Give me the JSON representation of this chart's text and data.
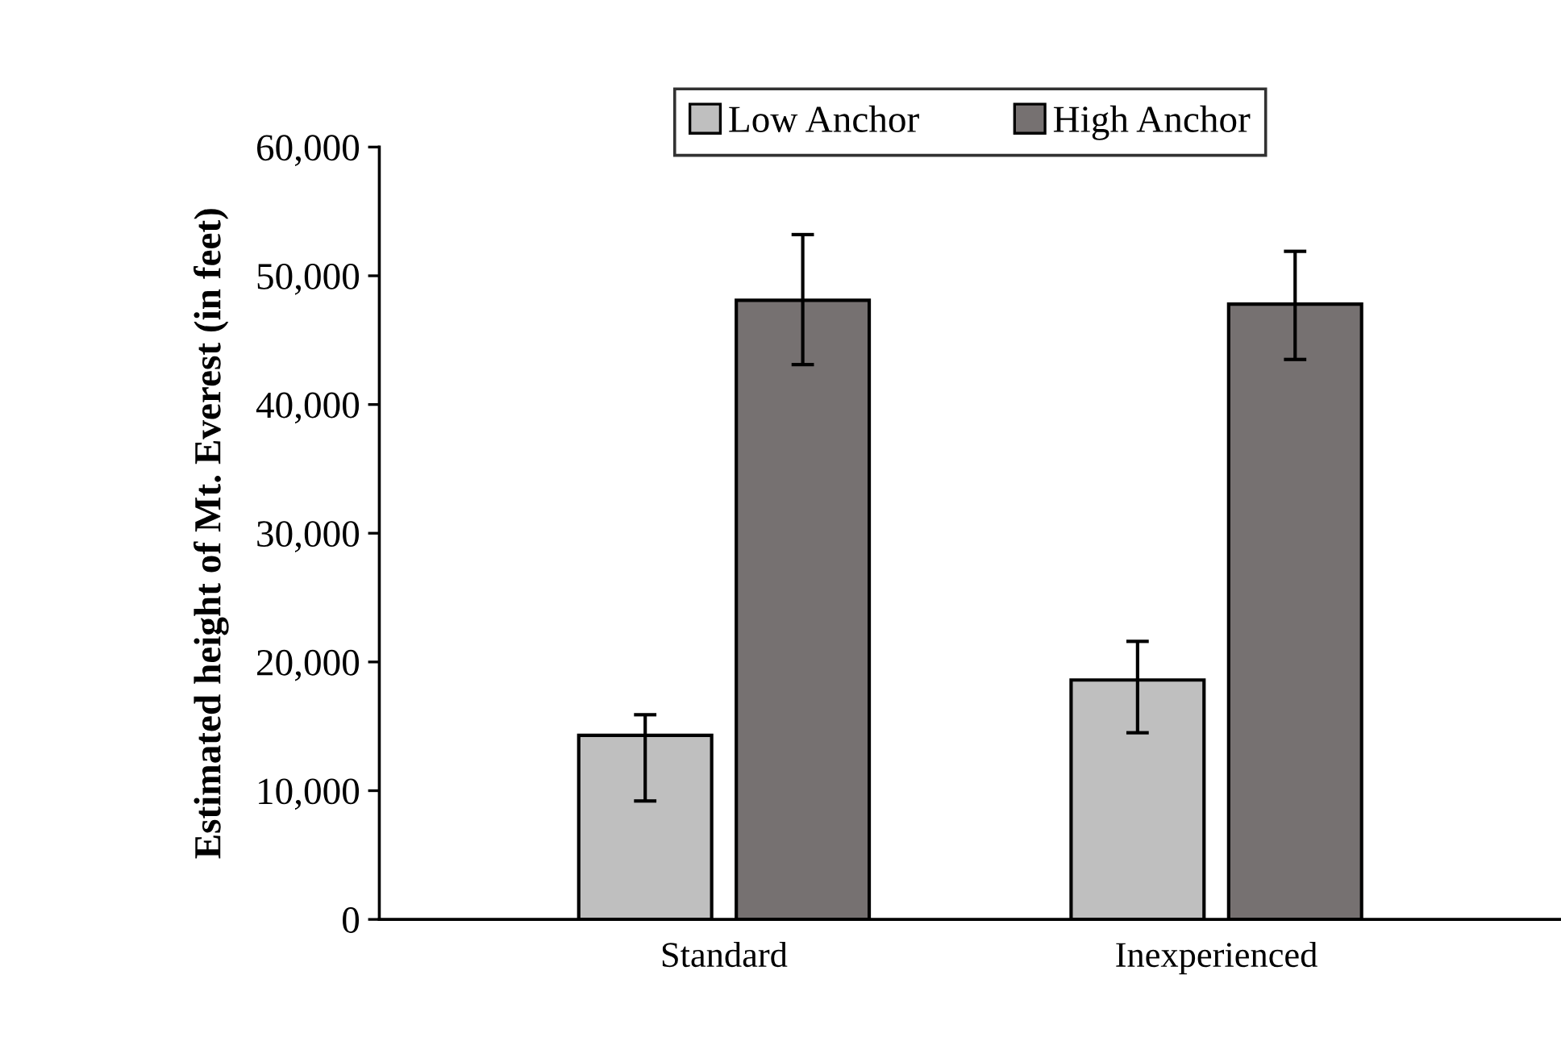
{
  "chart_data": {
    "type": "bar",
    "ylabel": "Estimated height of Mt. Everest (in feet)",
    "categories": [
      "Standard",
      "Inexperienced"
    ],
    "series": [
      {
        "name": "Low Anchor",
        "color": "#bfbfbf",
        "values": [
          14300,
          18600
        ],
        "errors": [
          [
            9200,
            15900
          ],
          [
            14500,
            21600
          ]
        ]
      },
      {
        "name": "High Anchor",
        "color": "#767171",
        "values": [
          48100,
          47800
        ],
        "errors": [
          [
            43100,
            53200
          ],
          [
            43500,
            51900
          ]
        ]
      }
    ],
    "ylim": [
      0,
      60000
    ],
    "yticks": [
      0,
      {
        "value": 10000,
        "label": "10,000"
      },
      {
        "value": 20000,
        "label": "20,000"
      },
      {
        "value": 30000,
        "label": "30,000"
      },
      {
        "value": 40000,
        "label": "40,000"
      },
      {
        "value": 50000,
        "label": "50,000"
      },
      {
        "value": 60000,
        "label": "60,000"
      }
    ],
    "grid": false,
    "legend": "top"
  }
}
